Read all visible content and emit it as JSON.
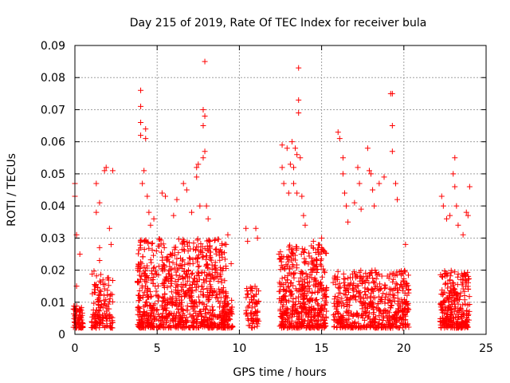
{
  "chart_data": {
    "type": "scatter",
    "title": "Day 215 of 2019, Rate Of TEC Index for receiver bula",
    "xlabel": "GPS time / hours",
    "ylabel": "ROTI / TECUs",
    "xlim": [
      0,
      25
    ],
    "ylim": [
      0,
      0.09
    ],
    "grid": true,
    "marker": "plus",
    "color": "#ff0000",
    "x_ticks": [
      "0",
      "5",
      "10",
      "15",
      "20",
      "25"
    ],
    "y_ticks": [
      "0",
      "0.01",
      "0.02",
      "0.03",
      "0.04",
      "0.05",
      "0.06",
      "0.07",
      "0.08",
      "0.09"
    ],
    "x_tick_values": [
      0,
      5,
      10,
      15,
      20,
      25
    ],
    "y_tick_values": [
      0,
      0.01,
      0.02,
      0.03,
      0.04,
      0.05,
      0.06,
      0.07,
      0.08,
      0.09
    ],
    "clusters": [
      {
        "x": [
          -0.1,
          0.5
        ],
        "yhi": 0.009,
        "n": 70
      },
      {
        "x": [
          1.0,
          1.6
        ],
        "yhi": 0.02,
        "n": 80
      },
      {
        "x": [
          1.6,
          2.3
        ],
        "yhi": 0.018,
        "n": 60
      },
      {
        "x": [
          3.8,
          9.2
        ],
        "yhi": 0.03,
        "n": 900
      },
      {
        "x": [
          9.0,
          9.6
        ],
        "yhi": 0.012,
        "n": 60
      },
      {
        "x": [
          10.4,
          11.2
        ],
        "yhi": 0.015,
        "n": 70
      },
      {
        "x": [
          12.4,
          15.3
        ],
        "yhi": 0.028,
        "n": 500
      },
      {
        "x": [
          15.7,
          20.3
        ],
        "yhi": 0.02,
        "n": 550
      },
      {
        "x": [
          22.2,
          24.0
        ],
        "yhi": 0.02,
        "n": 280
      }
    ],
    "highlights": [
      {
        "x": 0.0,
        "y": 0.047
      },
      {
        "x": 0.0,
        "y": 0.043
      },
      {
        "x": 0.1,
        "y": 0.031
      },
      {
        "x": 0.3,
        "y": 0.025
      },
      {
        "x": 0.1,
        "y": 0.015
      },
      {
        "x": 1.3,
        "y": 0.047
      },
      {
        "x": 1.3,
        "y": 0.038
      },
      {
        "x": 1.5,
        "y": 0.041
      },
      {
        "x": 1.5,
        "y": 0.027
      },
      {
        "x": 1.5,
        "y": 0.023
      },
      {
        "x": 1.9,
        "y": 0.052
      },
      {
        "x": 1.8,
        "y": 0.051
      },
      {
        "x": 2.1,
        "y": 0.033
      },
      {
        "x": 2.3,
        "y": 0.051
      },
      {
        "x": 2.2,
        "y": 0.028
      },
      {
        "x": 4.0,
        "y": 0.076
      },
      {
        "x": 4.0,
        "y": 0.071
      },
      {
        "x": 4.0,
        "y": 0.066
      },
      {
        "x": 4.0,
        "y": 0.062
      },
      {
        "x": 4.3,
        "y": 0.064
      },
      {
        "x": 4.3,
        "y": 0.061
      },
      {
        "x": 4.2,
        "y": 0.051
      },
      {
        "x": 4.1,
        "y": 0.047
      },
      {
        "x": 4.4,
        "y": 0.043
      },
      {
        "x": 4.5,
        "y": 0.038
      },
      {
        "x": 4.6,
        "y": 0.034
      },
      {
        "x": 4.8,
        "y": 0.036
      },
      {
        "x": 5.3,
        "y": 0.044
      },
      {
        "x": 5.5,
        "y": 0.043
      },
      {
        "x": 6.0,
        "y": 0.037
      },
      {
        "x": 6.2,
        "y": 0.042
      },
      {
        "x": 6.6,
        "y": 0.047
      },
      {
        "x": 6.8,
        "y": 0.045
      },
      {
        "x": 7.1,
        "y": 0.038
      },
      {
        "x": 7.4,
        "y": 0.049
      },
      {
        "x": 7.5,
        "y": 0.053
      },
      {
        "x": 7.4,
        "y": 0.052
      },
      {
        "x": 7.6,
        "y": 0.04
      },
      {
        "x": 7.9,
        "y": 0.085
      },
      {
        "x": 7.8,
        "y": 0.07
      },
      {
        "x": 7.9,
        "y": 0.068
      },
      {
        "x": 7.8,
        "y": 0.065
      },
      {
        "x": 7.9,
        "y": 0.057
      },
      {
        "x": 7.8,
        "y": 0.055
      },
      {
        "x": 8.0,
        "y": 0.04
      },
      {
        "x": 8.1,
        "y": 0.036
      },
      {
        "x": 8.2,
        "y": 0.029
      },
      {
        "x": 9.3,
        "y": 0.031
      },
      {
        "x": 9.2,
        "y": 0.028
      },
      {
        "x": 9.5,
        "y": 0.022
      },
      {
        "x": 10.4,
        "y": 0.033
      },
      {
        "x": 10.5,
        "y": 0.029
      },
      {
        "x": 11.0,
        "y": 0.033
      },
      {
        "x": 11.1,
        "y": 0.03
      },
      {
        "x": 12.6,
        "y": 0.059
      },
      {
        "x": 12.6,
        "y": 0.052
      },
      {
        "x": 12.7,
        "y": 0.047
      },
      {
        "x": 12.9,
        "y": 0.058
      },
      {
        "x": 13.0,
        "y": 0.044
      },
      {
        "x": 13.1,
        "y": 0.053
      },
      {
        "x": 13.2,
        "y": 0.06
      },
      {
        "x": 13.3,
        "y": 0.052
      },
      {
        "x": 13.3,
        "y": 0.047
      },
      {
        "x": 13.4,
        "y": 0.058
      },
      {
        "x": 13.5,
        "y": 0.056
      },
      {
        "x": 13.6,
        "y": 0.083
      },
      {
        "x": 13.6,
        "y": 0.073
      },
      {
        "x": 13.6,
        "y": 0.069
      },
      {
        "x": 13.7,
        "y": 0.055
      },
      {
        "x": 13.5,
        "y": 0.044
      },
      {
        "x": 13.8,
        "y": 0.043
      },
      {
        "x": 13.9,
        "y": 0.037
      },
      {
        "x": 14.0,
        "y": 0.034
      },
      {
        "x": 14.5,
        "y": 0.029
      },
      {
        "x": 15.0,
        "y": 0.03
      },
      {
        "x": 16.0,
        "y": 0.063
      },
      {
        "x": 16.1,
        "y": 0.061
      },
      {
        "x": 16.3,
        "y": 0.055
      },
      {
        "x": 16.3,
        "y": 0.05
      },
      {
        "x": 16.4,
        "y": 0.044
      },
      {
        "x": 16.5,
        "y": 0.04
      },
      {
        "x": 16.6,
        "y": 0.035
      },
      {
        "x": 17.0,
        "y": 0.041
      },
      {
        "x": 17.2,
        "y": 0.052
      },
      {
        "x": 17.3,
        "y": 0.047
      },
      {
        "x": 17.4,
        "y": 0.039
      },
      {
        "x": 17.8,
        "y": 0.058
      },
      {
        "x": 17.9,
        "y": 0.051
      },
      {
        "x": 18.0,
        "y": 0.05
      },
      {
        "x": 18.1,
        "y": 0.045
      },
      {
        "x": 18.2,
        "y": 0.04
      },
      {
        "x": 18.5,
        "y": 0.047
      },
      {
        "x": 18.8,
        "y": 0.049
      },
      {
        "x": 19.2,
        "y": 0.075
      },
      {
        "x": 19.3,
        "y": 0.075
      },
      {
        "x": 19.3,
        "y": 0.065
      },
      {
        "x": 19.3,
        "y": 0.057
      },
      {
        "x": 19.5,
        "y": 0.047
      },
      {
        "x": 19.6,
        "y": 0.042
      },
      {
        "x": 20.1,
        "y": 0.028
      },
      {
        "x": 22.3,
        "y": 0.043
      },
      {
        "x": 22.4,
        "y": 0.04
      },
      {
        "x": 22.6,
        "y": 0.036
      },
      {
        "x": 22.8,
        "y": 0.037
      },
      {
        "x": 23.1,
        "y": 0.055
      },
      {
        "x": 23.0,
        "y": 0.05
      },
      {
        "x": 23.1,
        "y": 0.046
      },
      {
        "x": 23.2,
        "y": 0.04
      },
      {
        "x": 23.3,
        "y": 0.034
      },
      {
        "x": 23.8,
        "y": 0.038
      },
      {
        "x": 23.9,
        "y": 0.037
      },
      {
        "x": 24.0,
        "y": 0.046
      },
      {
        "x": 23.6,
        "y": 0.031
      }
    ]
  }
}
